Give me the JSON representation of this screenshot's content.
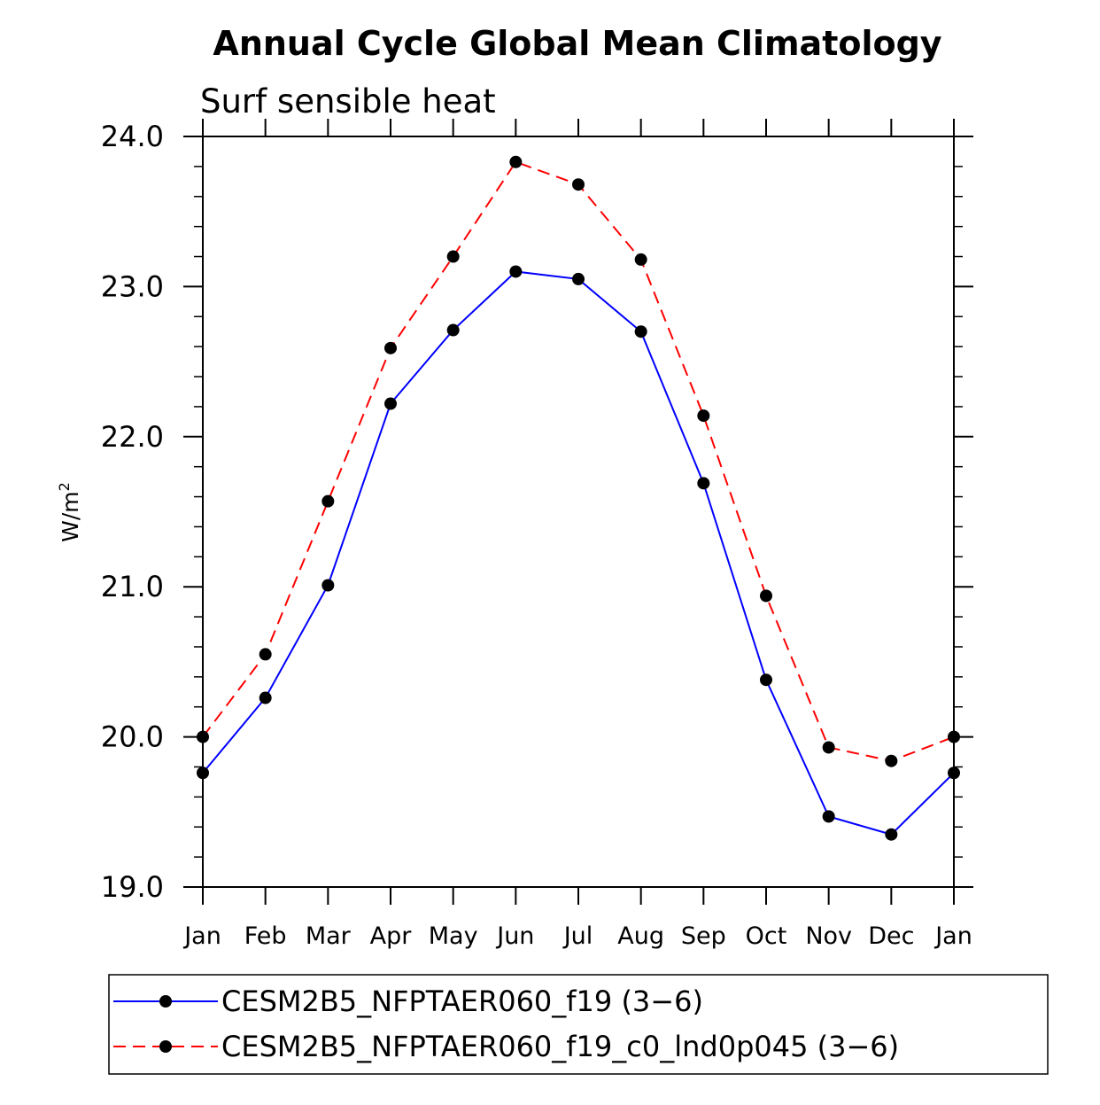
{
  "chart_data": {
    "type": "line",
    "title": "Annual Cycle Global Mean Climatology",
    "subtitle": "Surf sensible heat",
    "xlabel": "",
    "ylabel": "W/m",
    "ylabel_superscript": "2",
    "categories": [
      "Jan",
      "Feb",
      "Mar",
      "Apr",
      "May",
      "Jun",
      "Jul",
      "Aug",
      "Sep",
      "Oct",
      "Nov",
      "Dec",
      "Jan"
    ],
    "ylim": [
      19.0,
      24.0
    ],
    "yticks": [
      19.0,
      20.0,
      21.0,
      22.0,
      23.0,
      24.0
    ],
    "ytick_labels": [
      "19.0",
      "20.0",
      "21.0",
      "22.0",
      "23.0",
      "24.0"
    ],
    "legend_position": "bottom",
    "series": [
      {
        "name": "CESM2B5_NFPTAER060_f19 (3−6)",
        "color": "#0000ff",
        "dash": "solid",
        "marker": "dot",
        "values": [
          19.76,
          20.26,
          21.01,
          22.22,
          22.71,
          23.1,
          23.05,
          22.7,
          21.69,
          20.38,
          19.47,
          19.35,
          19.76
        ]
      },
      {
        "name": "CESM2B5_NFPTAER060_f19_c0_lnd0p045 (3−6)",
        "color": "#ff0000",
        "dash": "dashed",
        "marker": "dot",
        "values": [
          20.0,
          20.55,
          21.57,
          22.59,
          23.2,
          23.83,
          23.68,
          23.18,
          22.14,
          20.94,
          19.93,
          19.84,
          20.0
        ]
      }
    ]
  }
}
